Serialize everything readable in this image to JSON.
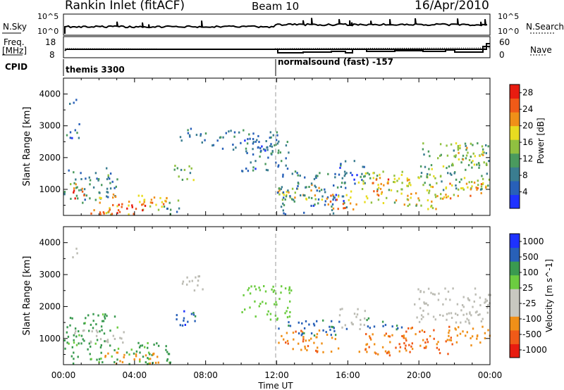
{
  "header": {
    "station": "Rankin Inlet (fitACF)",
    "beam": "Beam 10",
    "date": "16/Apr/2010"
  },
  "top_panels": {
    "nsky_label": "N.Sky",
    "nsearch_label": "N.Search",
    "nsky_ticks": [
      "10^5",
      "10^0"
    ],
    "freq_label": "Freq.",
    "freq_unit": "[MHz]",
    "freq_ticks": [
      "18",
      "8"
    ],
    "nave_label": "Nave",
    "nave_ticks": [
      "60",
      "0"
    ],
    "cpid_label": "CPID",
    "cpid_segments": [
      {
        "name": "themis 3300",
        "start": "00:00"
      },
      {
        "name": "normalsound (fast) -157",
        "start": "12:00"
      }
    ]
  },
  "colors": {
    "power": [
      "#1e32ff",
      "#2860b8",
      "#3a7d90",
      "#4a9a5e",
      "#90c040",
      "#e8dc20",
      "#f09018",
      "#f05a18",
      "#e81c10"
    ],
    "velocity": [
      "#e81c10",
      "#f05a18",
      "#f09018",
      "#c8c8c0",
      "#c8c8c0",
      "#6ccc40",
      "#3a9a50",
      "#2860b8",
      "#1e32ff"
    ],
    "ground_scatter": "#bcbcb4"
  },
  "chart_data": [
    {
      "type": "heatmap",
      "title": "Power",
      "ylabel": "Slant Range [km]",
      "xlabel": "Time UT",
      "x_ticks": [
        "00:00",
        "04:00",
        "08:00",
        "12:00",
        "16:00",
        "20:00",
        "00:00"
      ],
      "x_range_hours": [
        0,
        24
      ],
      "ylim": [
        180,
        4500
      ],
      "y_ticks": [
        1000,
        2000,
        3000,
        4000
      ],
      "colorbar_label": "Power [dB]",
      "colorbar_ticks": [
        4,
        8,
        12,
        16,
        20,
        24,
        28
      ],
      "colorbar_range": [
        0,
        30
      ],
      "patches": [
        {
          "t": [
            0.0,
            3.0
          ],
          "r": [
            600,
            1700
          ],
          "v": 9
        },
        {
          "t": [
            0.3,
            1.3
          ],
          "r": [
            700,
            1200
          ],
          "v": 24
        },
        {
          "t": [
            1.5,
            5.8
          ],
          "r": [
            200,
            900
          ],
          "v": 20
        },
        {
          "t": [
            2.0,
            4.6
          ],
          "r": [
            200,
            600
          ],
          "v": 29
        },
        {
          "t": [
            0.1,
            0.9
          ],
          "r": [
            2600,
            3200
          ],
          "v": 7
        },
        {
          "t": [
            0.3,
            0.8
          ],
          "r": [
            3500,
            3900
          ],
          "v": 5
        },
        {
          "t": [
            5.5,
            6.5
          ],
          "r": [
            180,
            700
          ],
          "v": 10
        },
        {
          "t": [
            6.2,
            7.4
          ],
          "r": [
            1200,
            1800
          ],
          "v": 14
        },
        {
          "t": [
            6.5,
            8.0
          ],
          "r": [
            2500,
            3000
          ],
          "v": 9
        },
        {
          "t": [
            8.3,
            12.0
          ],
          "r": [
            2200,
            2900
          ],
          "v": 7
        },
        {
          "t": [
            10.0,
            12.8
          ],
          "r": [
            1600,
            2700
          ],
          "v": 8
        },
        {
          "t": [
            12.0,
            14.5
          ],
          "r": [
            600,
            1200
          ],
          "v": 18
        },
        {
          "t": [
            12.0,
            16.0
          ],
          "r": [
            200,
            1600
          ],
          "v": 8
        },
        {
          "t": [
            14.5,
            16.5
          ],
          "r": [
            400,
            1000
          ],
          "v": 22
        },
        {
          "t": [
            15.5,
            17.0
          ],
          "r": [
            1200,
            2000
          ],
          "v": 7
        },
        {
          "t": [
            16.5,
            19.5
          ],
          "r": [
            600,
            1600
          ],
          "v": 16
        },
        {
          "t": [
            17.0,
            18.5
          ],
          "r": [
            800,
            1400
          ],
          "v": 22
        },
        {
          "t": [
            19.0,
            21.5
          ],
          "r": [
            400,
            1500
          ],
          "v": 18
        },
        {
          "t": [
            20.0,
            24.0
          ],
          "r": [
            1000,
            2500
          ],
          "v": 13
        },
        {
          "t": [
            21.5,
            24.0
          ],
          "r": [
            700,
            1300
          ],
          "v": 21
        },
        {
          "t": [
            22.0,
            23.8
          ],
          "r": [
            1800,
            2500
          ],
          "v": 17
        }
      ]
    },
    {
      "type": "heatmap",
      "title": "Velocity",
      "ylabel": "Slant Range [km]",
      "xlabel": "Time UT",
      "x_ticks": [
        "00:00",
        "04:00",
        "08:00",
        "12:00",
        "16:00",
        "20:00",
        "00:00"
      ],
      "x_range_hours": [
        0,
        24
      ],
      "ylim": [
        180,
        4500
      ],
      "y_ticks": [
        1000,
        2000,
        3000,
        4000
      ],
      "colorbar_label": "Velocity [m s^-1]",
      "colorbar_ticks": [
        1000,
        500,
        100,
        25,
        -25,
        -100,
        -500,
        -1000
      ],
      "patches": [
        {
          "t": [
            0.0,
            3.0
          ],
          "r": [
            900,
            1800
          ],
          "v": 150
        },
        {
          "t": [
            0.5,
            3.5
          ],
          "r": [
            900,
            1300
          ],
          "v": 0,
          "g": true
        },
        {
          "t": [
            0.0,
            6.0
          ],
          "r": [
            200,
            900
          ],
          "v": 120
        },
        {
          "t": [
            2.0,
            5.5
          ],
          "r": [
            200,
            600
          ],
          "v": -300
        },
        {
          "t": [
            6.2,
            7.4
          ],
          "r": [
            1200,
            1900
          ],
          "v": 800
        },
        {
          "t": [
            0.3,
            0.8
          ],
          "r": [
            3500,
            3900
          ],
          "v": 0,
          "g": true
        },
        {
          "t": [
            6.5,
            8.0
          ],
          "r": [
            2500,
            3000
          ],
          "v": 0,
          "g": true
        },
        {
          "t": [
            10.0,
            12.8
          ],
          "r": [
            1600,
            2700
          ],
          "v": 60
        },
        {
          "t": [
            12.0,
            15.5
          ],
          "r": [
            600,
            1300
          ],
          "v": -400
        },
        {
          "t": [
            12.0,
            16.0
          ],
          "r": [
            1100,
            1600
          ],
          "v": 600
        },
        {
          "t": [
            15.5,
            17.0
          ],
          "r": [
            1300,
            2000
          ],
          "v": 0,
          "g": true
        },
        {
          "t": [
            17.0,
            19.0
          ],
          "r": [
            1300,
            1700
          ],
          "v": 700
        },
        {
          "t": [
            16.5,
            19.5
          ],
          "r": [
            500,
            1200
          ],
          "v": -500
        },
        {
          "t": [
            19.0,
            22.0
          ],
          "r": [
            500,
            1400
          ],
          "v": -600
        },
        {
          "t": [
            19.5,
            24.0
          ],
          "r": [
            1500,
            2600
          ],
          "v": 0,
          "g": true
        },
        {
          "t": [
            21.5,
            24.0
          ],
          "r": [
            800,
            1400
          ],
          "v": -200
        }
      ]
    }
  ]
}
